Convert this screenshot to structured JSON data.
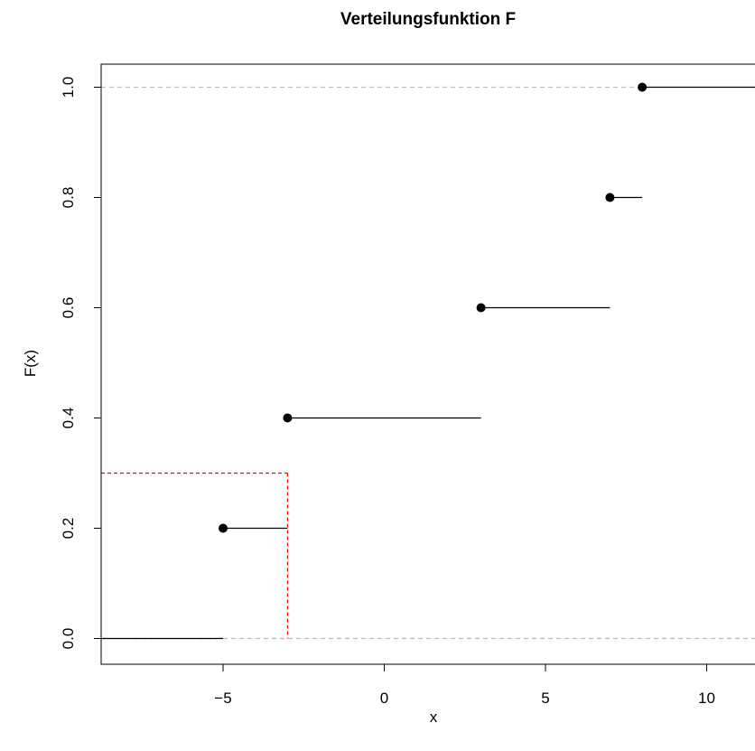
{
  "chart_data": {
    "type": "step",
    "title": "Verteilungsfunktion F",
    "xlabel": "x",
    "ylabel": "F(x)",
    "xlim": [
      -8.8,
      11.5
    ],
    "ylim": [
      -0.0,
      1.0
    ],
    "x_ticks": [
      -5,
      0,
      5,
      10
    ],
    "x_tick_labels": [
      "−5",
      "0",
      "5",
      "10"
    ],
    "y_ticks": [
      0.0,
      0.2,
      0.4,
      0.6,
      0.8,
      1.0
    ],
    "y_tick_labels": [
      "0.0",
      "0.2",
      "0.4",
      "0.6",
      "0.8",
      "1.0"
    ],
    "steps": [
      {
        "x_start": -8.8,
        "x_end": -5,
        "y": 0.0,
        "point": false
      },
      {
        "x_start": -5,
        "x_end": -3,
        "y": 0.2,
        "point": true
      },
      {
        "x_start": -3,
        "x_end": 3,
        "y": 0.4,
        "point": true
      },
      {
        "x_start": 3,
        "x_end": 7,
        "y": 0.6,
        "point": true
      },
      {
        "x_start": 7,
        "x_end": 8,
        "y": 0.8,
        "point": true
      },
      {
        "x_start": 8,
        "x_end": 11.5,
        "y": 1.0,
        "point": true
      }
    ],
    "reference_lines": [
      0.0,
      1.0
    ],
    "annotation": {
      "x": -3,
      "y": 0.3
    },
    "colors": {
      "steps": "#000000",
      "reference": "#bebebe",
      "annotation": "#ff0000"
    }
  }
}
